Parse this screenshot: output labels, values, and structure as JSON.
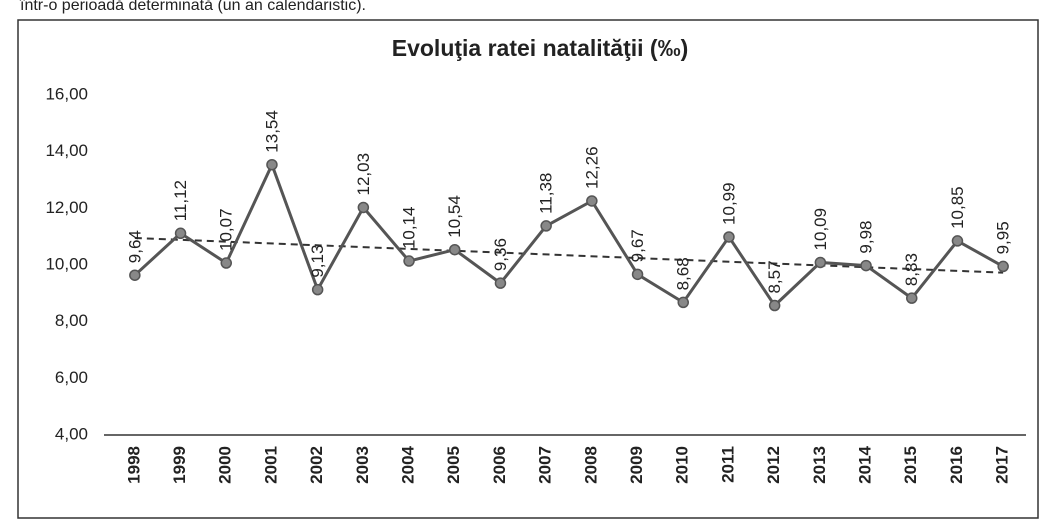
{
  "header_text": "într-o perioadă determinată (un an calendaristic).",
  "chart_data": {
    "type": "line",
    "title": "Evoluţia ratei natalităţii (‰)",
    "categories": [
      "1998",
      "1999",
      "2000",
      "2001",
      "2002",
      "2003",
      "2004",
      "2005",
      "2006",
      "2007",
      "2008",
      "2009",
      "2010",
      "2011",
      "2012",
      "2013",
      "2014",
      "2015",
      "2016",
      "2017"
    ],
    "series": [
      {
        "color": "#555555",
        "values": [
          9.64,
          11.12,
          10.07,
          13.54,
          9.13,
          12.03,
          10.14,
          10.54,
          9.36,
          11.38,
          12.26,
          9.67,
          8.68,
          10.99,
          8.57,
          10.09,
          9.98,
          8.83,
          10.85,
          9.95
        ],
        "value_labels": [
          "9,64",
          "11,12",
          "10,07",
          "13,54",
          "9,13",
          "12,03",
          "10,14",
          "10,54",
          "9,36",
          "11,38",
          "12,26",
          "9,67",
          "8,68",
          "10,99",
          "8,57",
          "10,09",
          "9,98",
          "8,83",
          "10,85",
          "9,95"
        ]
      }
    ],
    "ylim": [
      4,
      16
    ],
    "yticks": [
      {
        "value": 4,
        "label": "4,00"
      },
      {
        "value": 6,
        "label": "6,00"
      },
      {
        "value": 8,
        "label": "8,00"
      },
      {
        "value": 10,
        "label": "10,00"
      },
      {
        "value": 12,
        "label": "12,00"
      },
      {
        "value": 14,
        "label": "14,00"
      },
      {
        "value": 16,
        "label": "16,00"
      }
    ],
    "trendline": "linear",
    "grid": false
  }
}
